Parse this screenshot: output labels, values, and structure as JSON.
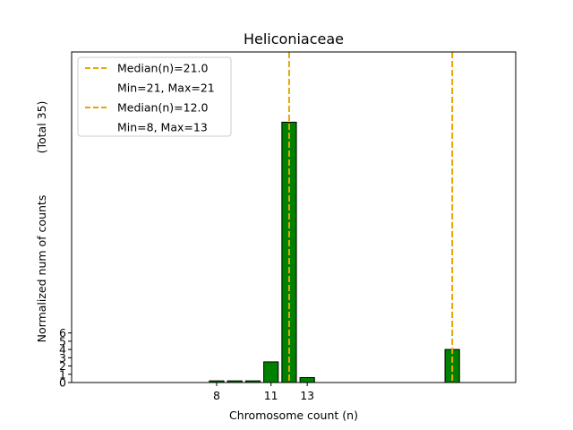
{
  "chart_data": {
    "type": "bar",
    "title": "Heliconiaceae",
    "xlabel": "Chromosome count (n)",
    "ylabel": "Normalized num of counts",
    "ylabel_total": "(Total 35)",
    "xlim": [
      0,
      24.5
    ],
    "ylim": [
      0,
      40
    ],
    "x_ticks": [
      8,
      11,
      13
    ],
    "y_ticks": [
      0,
      1,
      2,
      3,
      4,
      5,
      6
    ],
    "bar_width": 0.8,
    "bar_color": "#008000",
    "bar_edge_color": "#000000",
    "bars": [
      {
        "x": 8,
        "value": 0.2
      },
      {
        "x": 9,
        "value": 0.2
      },
      {
        "x": 10,
        "value": 0.2
      },
      {
        "x": 11,
        "value": 2.5
      },
      {
        "x": 12,
        "value": 31.5
      },
      {
        "x": 13,
        "value": 0.6
      },
      {
        "x": 21,
        "value": 4.0
      }
    ],
    "median_lines": [
      {
        "x": 21,
        "color": "#e6a800",
        "label": "Median(n)=21.0",
        "range_label": "Min=21, Max=21"
      },
      {
        "x": 12,
        "color": "#e6a800",
        "label": "Median(n)=12.0",
        "range_label": "Min=8, Max=13"
      }
    ],
    "legend_position": "top-left",
    "grid": false
  }
}
